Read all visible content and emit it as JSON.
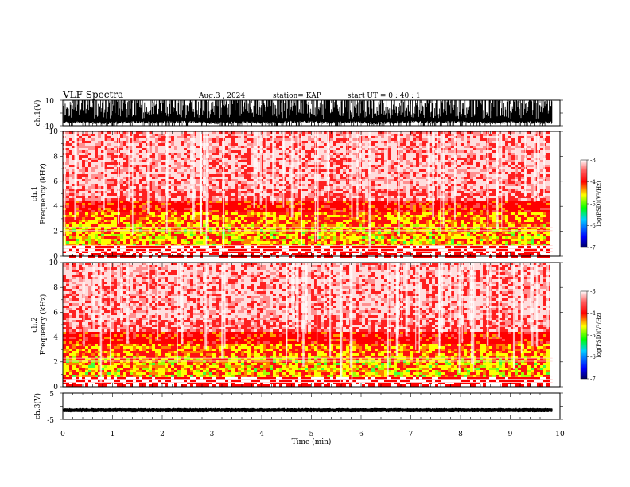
{
  "header": {
    "title": "VLF  Spectra",
    "date": "Aug.3  , 2024",
    "station": "station= KAP",
    "start": "start  UT  =   0  : 40 : 1"
  },
  "chart_data": [
    {
      "type": "line",
      "id": "ch1-waveform",
      "ylabel": "ch.1(V)",
      "ylim": [
        -10,
        10
      ],
      "yticklabels": [
        "10",
        "-10"
      ],
      "x_range": [
        0,
        9.85
      ],
      "description_values": {
        "band_low_typical": -6,
        "band_high_typical": 10
      }
    },
    {
      "type": "heatmap",
      "id": "ch1-spectrogram",
      "ylabel_line1": "ch.1",
      "ylabel_line2": "Frequency  (kHz)",
      "ylim": [
        0,
        10
      ],
      "yticklabels": [
        "0",
        "2",
        "4",
        "6",
        "8",
        "10"
      ],
      "x_range": [
        0,
        9.85
      ],
      "colorbar": {
        "label": "log(PSD)(V²/Hz)",
        "range": [
          -7,
          -3
        ],
        "ticks": [
          "-3",
          "-4",
          "-5",
          "-6",
          "-7"
        ]
      }
    },
    {
      "type": "heatmap",
      "id": "ch2-spectrogram",
      "ylabel_line1": "ch.2",
      "ylabel_line2": "Frequency  (kHz)",
      "ylim": [
        0,
        10
      ],
      "yticklabels": [
        "0",
        "2",
        "4",
        "6",
        "8",
        "10"
      ],
      "x_range": [
        0,
        9.85
      ],
      "colorbar": {
        "label": "log(PSD)(V²/Hz)",
        "range": [
          -7,
          -3
        ],
        "ticks": [
          "-3",
          "-4",
          "-5",
          "-6",
          "-7"
        ]
      }
    },
    {
      "type": "line",
      "id": "ch3-waveform",
      "ylabel": "ch.3(V)",
      "ylim": [
        -5,
        5
      ],
      "yticklabels": [
        "5",
        "-5"
      ],
      "x_range": [
        0,
        9.85
      ],
      "description_values": {
        "band_low_typical": -2,
        "band_high_typical": -1
      }
    }
  ],
  "xaxis": {
    "label": "Time  (min)",
    "range": [
      0,
      10
    ],
    "ticklabels": [
      "0",
      "1",
      "2",
      "3",
      "4",
      "5",
      "6",
      "7",
      "8",
      "9",
      "10"
    ]
  },
  "colors": {
    "colorbar_stops": [
      "#000080",
      "#0000ff",
      "#00ffff",
      "#00ff00",
      "#ffff00",
      "#ff0000",
      "#ffffff"
    ]
  }
}
